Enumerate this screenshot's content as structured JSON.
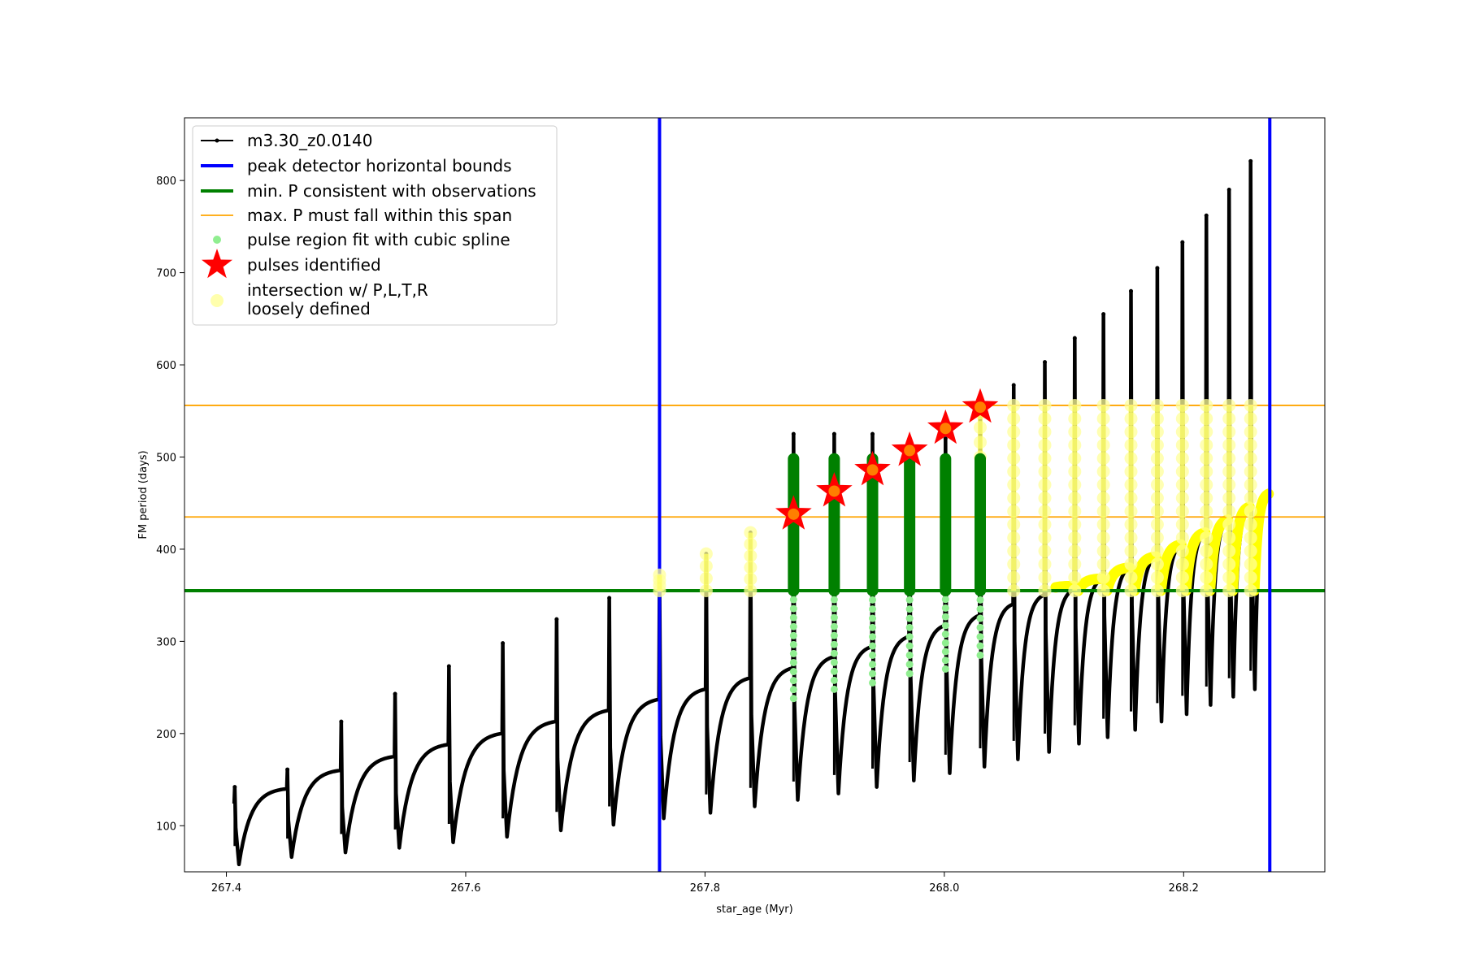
{
  "chart_data": {
    "type": "scatter",
    "title": "",
    "xlabel": "star_age (Myr)",
    "ylabel": "FM period (days)",
    "xlim": [
      267.365,
      268.318
    ],
    "ylim": [
      50,
      868
    ],
    "x_ticks": [
      {
        "value": 267.4,
        "label": "267.4"
      },
      {
        "value": 267.6,
        "label": "267.6"
      },
      {
        "value": 267.8,
        "label": "267.8"
      },
      {
        "value": 268.0,
        "label": "268.0"
      },
      {
        "value": 268.2,
        "label": "268.2"
      }
    ],
    "y_ticks": [
      {
        "value": 100,
        "label": "100"
      },
      {
        "value": 200,
        "label": "200"
      },
      {
        "value": 300,
        "label": "300"
      },
      {
        "value": 400,
        "label": "400"
      },
      {
        "value": 500,
        "label": "500"
      },
      {
        "value": 600,
        "label": "600"
      },
      {
        "value": 700,
        "label": "700"
      },
      {
        "value": 800,
        "label": "800"
      }
    ],
    "grid": false,
    "legend_position": "upper left",
    "colors": {
      "model_track": "#000000",
      "peak_bounds": "#0000ff",
      "min_period": "#008000",
      "max_period_span": "#ffa500",
      "spline_fit": "#90ee90",
      "spline_fit_dark": "#008000",
      "pulses": "#ff0000",
      "pulses_inner": "#ff8c00",
      "loosely_defined": "#ffff00"
    },
    "legend": [
      {
        "label": "m3.30_z0.0140",
        "kind": "line-marker",
        "color": "#000000"
      },
      {
        "label": "peak detector horizontal bounds",
        "kind": "thick-line",
        "color": "#0000ff"
      },
      {
        "label": "min. P consistent with observations",
        "kind": "thick-line",
        "color": "#008000"
      },
      {
        "label": "max. P must fall within this span",
        "kind": "thin-line",
        "color": "#ffa500"
      },
      {
        "label": "pulse region fit with cubic spline",
        "kind": "dot",
        "color": "#90ee90"
      },
      {
        "label": "pulses identified",
        "kind": "star",
        "color": "#ff0000"
      },
      {
        "label": "intersection w/ P,L,T,R",
        "label2": "loosely defined",
        "kind": "halo",
        "color": "#ffff99"
      }
    ],
    "vertical_lines": [
      {
        "name": "peak detector horizontal bounds",
        "x": 267.762
      },
      {
        "name": "peak detector horizontal bounds",
        "x": 268.272
      }
    ],
    "horizontal_lines": [
      {
        "name": "min. P consistent with observations",
        "y": 355
      },
      {
        "name": "max. P must fall within this span",
        "y": 435
      },
      {
        "name": "max. P must fall within this span",
        "y": 556
      }
    ],
    "pulses": [
      {
        "t": 267.407,
        "min": 58,
        "peak": 142,
        "end": 140
      },
      {
        "t": 267.451,
        "min": 66,
        "peak": 161,
        "end": 160
      },
      {
        "t": 267.496,
        "min": 71,
        "peak": 213,
        "end": 175
      },
      {
        "t": 267.541,
        "min": 76,
        "peak": 243,
        "end": 188
      },
      {
        "t": 267.586,
        "min": 82,
        "peak": 273,
        "end": 200
      },
      {
        "t": 267.631,
        "min": 88,
        "peak": 298,
        "end": 213
      },
      {
        "t": 267.676,
        "min": 95,
        "peak": 324,
        "end": 225
      },
      {
        "t": 267.72,
        "min": 101,
        "peak": 347,
        "end": 237
      },
      {
        "t": 267.762,
        "min": 108,
        "peak": 370,
        "end": 248
      },
      {
        "t": 267.801,
        "min": 114,
        "peak": 395,
        "end": 260
      },
      {
        "t": 267.838,
        "min": 121,
        "peak": 418,
        "end": 271
      },
      {
        "t": 267.874,
        "min": 128,
        "peak": 525,
        "end": 283
      },
      {
        "t": 267.908,
        "min": 135,
        "peak": 525,
        "end": 294
      },
      {
        "t": 267.94,
        "min": 142,
        "peak": 525,
        "end": 305
      },
      {
        "t": 267.971,
        "min": 149,
        "peak": 500,
        "end": 317
      },
      {
        "t": 268.001,
        "min": 157,
        "peak": 520,
        "end": 328
      },
      {
        "t": 268.03,
        "min": 164,
        "peak": 545,
        "end": 340
      },
      {
        "t": 268.058,
        "min": 172,
        "peak": 578,
        "end": 350
      },
      {
        "t": 268.084,
        "min": 180,
        "peak": 603,
        "end": 356
      },
      {
        "t": 268.109,
        "min": 189,
        "peak": 629,
        "end": 368
      },
      {
        "t": 268.133,
        "min": 196,
        "peak": 655,
        "end": 380
      },
      {
        "t": 268.156,
        "min": 204,
        "peak": 680,
        "end": 392
      },
      {
        "t": 268.178,
        "min": 213,
        "peak": 705,
        "end": 405
      },
      {
        "t": 268.199,
        "min": 221,
        "peak": 733,
        "end": 418
      },
      {
        "t": 268.219,
        "min": 231,
        "peak": 762,
        "end": 432
      },
      {
        "t": 268.238,
        "min": 240,
        "peak": 790,
        "end": 446
      },
      {
        "t": 268.256,
        "min": 248,
        "peak": 821,
        "end": 460
      }
    ],
    "pulses_identified": [
      {
        "t": 267.874,
        "p": 438
      },
      {
        "t": 267.908,
        "p": 463
      },
      {
        "t": 267.94,
        "p": 486
      },
      {
        "t": 267.971,
        "p": 507
      },
      {
        "t": 268.001,
        "p": 531
      },
      {
        "t": 268.03,
        "p": 554
      }
    ],
    "spline_fit_regions": [
      {
        "t": 267.874,
        "low": 238,
        "high": 498
      },
      {
        "t": 267.908,
        "low": 248,
        "high": 498
      },
      {
        "t": 267.94,
        "low": 255,
        "high": 498
      },
      {
        "t": 267.971,
        "low": 265,
        "high": 498
      },
      {
        "t": 268.001,
        "low": 270,
        "high": 498
      },
      {
        "t": 268.03,
        "low": 285,
        "high": 498
      }
    ],
    "loosely_defined_markers": [
      {
        "t": 267.762,
        "low": 355,
        "high": 372
      },
      {
        "t": 267.801,
        "low": 355,
        "high": 395
      },
      {
        "t": 267.838,
        "low": 355,
        "high": 418
      },
      {
        "t": 268.03,
        "low": 500,
        "high": 548
      },
      {
        "t": 268.058,
        "low": 355,
        "high": 556
      },
      {
        "t": 268.084,
        "low": 355,
        "high": 556
      },
      {
        "t": 268.109,
        "low": 355,
        "high": 556
      },
      {
        "t": 268.133,
        "low": 355,
        "high": 556
      },
      {
        "t": 268.156,
        "low": 355,
        "high": 556
      },
      {
        "t": 268.178,
        "low": 355,
        "high": 556
      },
      {
        "t": 268.199,
        "low": 355,
        "high": 556
      },
      {
        "t": 268.219,
        "low": 355,
        "high": 556
      },
      {
        "t": 268.238,
        "low": 355,
        "high": 556
      },
      {
        "t": 268.256,
        "low": 355,
        "high": 556
      }
    ],
    "loosely_defined_band": {
      "t_start": 268.092,
      "t_end": 268.272,
      "low": 355,
      "high": 460
    }
  }
}
